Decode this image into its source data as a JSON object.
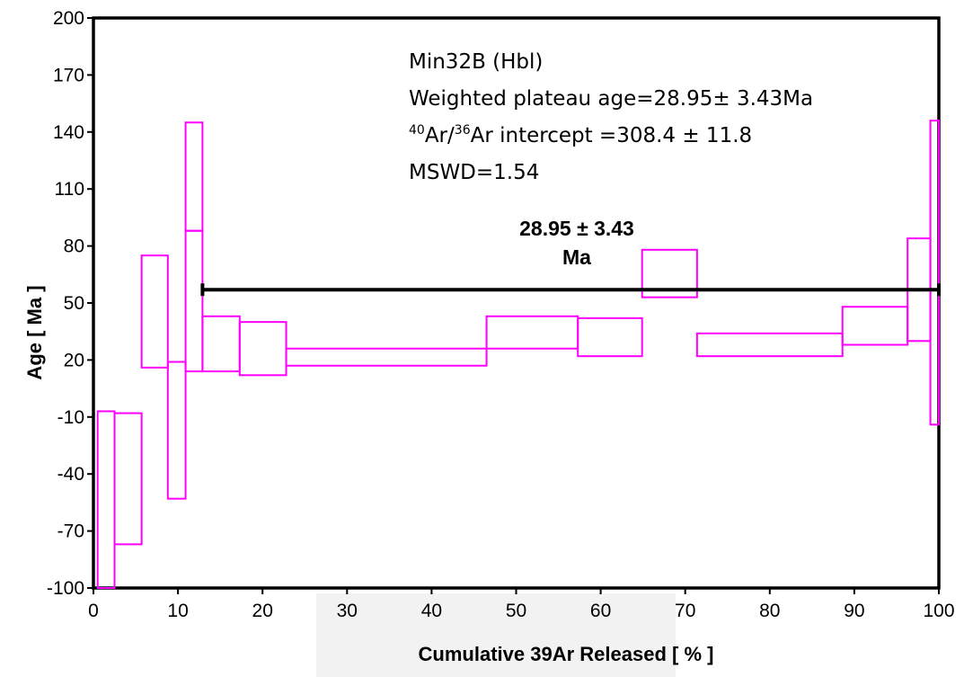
{
  "chart_data": {
    "type": "step_error_box",
    "xlabel": "Cumulative 39Ar Released [ % ]",
    "ylabel": "Age [ Ma ]",
    "xlim": [
      0,
      100
    ],
    "ylim": [
      -100,
      200
    ],
    "xticks": [
      0,
      10,
      20,
      30,
      40,
      50,
      60,
      70,
      80,
      90,
      100
    ],
    "yticks": [
      -100,
      -70,
      -40,
      -10,
      20,
      50,
      80,
      110,
      140,
      170,
      200
    ],
    "box_color": "#ff00ff",
    "plateau_color": "#000000",
    "steps": [
      {
        "x0": 0.5,
        "x1": 2.5,
        "low": -100,
        "high": -7
      },
      {
        "x0": 2.5,
        "x1": 5.7,
        "low": -77,
        "high": -8
      },
      {
        "x0": 5.7,
        "x1": 8.8,
        "low": 16,
        "high": 75
      },
      {
        "x0": 8.8,
        "x1": 10.9,
        "low": -53,
        "high": 19
      },
      {
        "x0": 10.9,
        "x1": 12.9,
        "low": 88,
        "high": 145
      },
      {
        "x0": 10.9,
        "x1": 12.9,
        "low": 14,
        "high": 88
      },
      {
        "x0": 12.9,
        "x1": 17.3,
        "low": 14,
        "high": 43
      },
      {
        "x0": 17.3,
        "x1": 22.8,
        "low": 12,
        "high": 40
      },
      {
        "x0": 22.8,
        "x1": 46.5,
        "low": 17,
        "high": 26
      },
      {
        "x0": 46.5,
        "x1": 57.3,
        "low": 26,
        "high": 43
      },
      {
        "x0": 57.3,
        "x1": 64.9,
        "low": 22,
        "high": 42
      },
      {
        "x0": 64.9,
        "x1": 71.4,
        "low": 53,
        "high": 78
      },
      {
        "x0": 71.4,
        "x1": 88.6,
        "low": 22,
        "high": 34
      },
      {
        "x0": 88.6,
        "x1": 96.3,
        "low": 28,
        "high": 48
      },
      {
        "x0": 96.3,
        "x1": 99.0,
        "low": 30,
        "high": 84
      },
      {
        "x0": 99.0,
        "x1": 100.0,
        "low": -14,
        "high": 146
      }
    ],
    "plateau": {
      "x0": 12.9,
      "x1": 100.0,
      "value": 57
    },
    "plateau_label": [
      "28.95 ± 3.43",
      "Ma"
    ],
    "annotations": {
      "sample": "Min32B (Hbl)",
      "plateau_age": "Weighted plateau age=28.95± 3.43Ma",
      "intercept_sup1": "40",
      "intercept_mid": "Ar/",
      "intercept_sup2": "36",
      "intercept_tail": "Ar intercept =308.4 ± 11.8",
      "mswd": "MSWD=1.54"
    }
  }
}
